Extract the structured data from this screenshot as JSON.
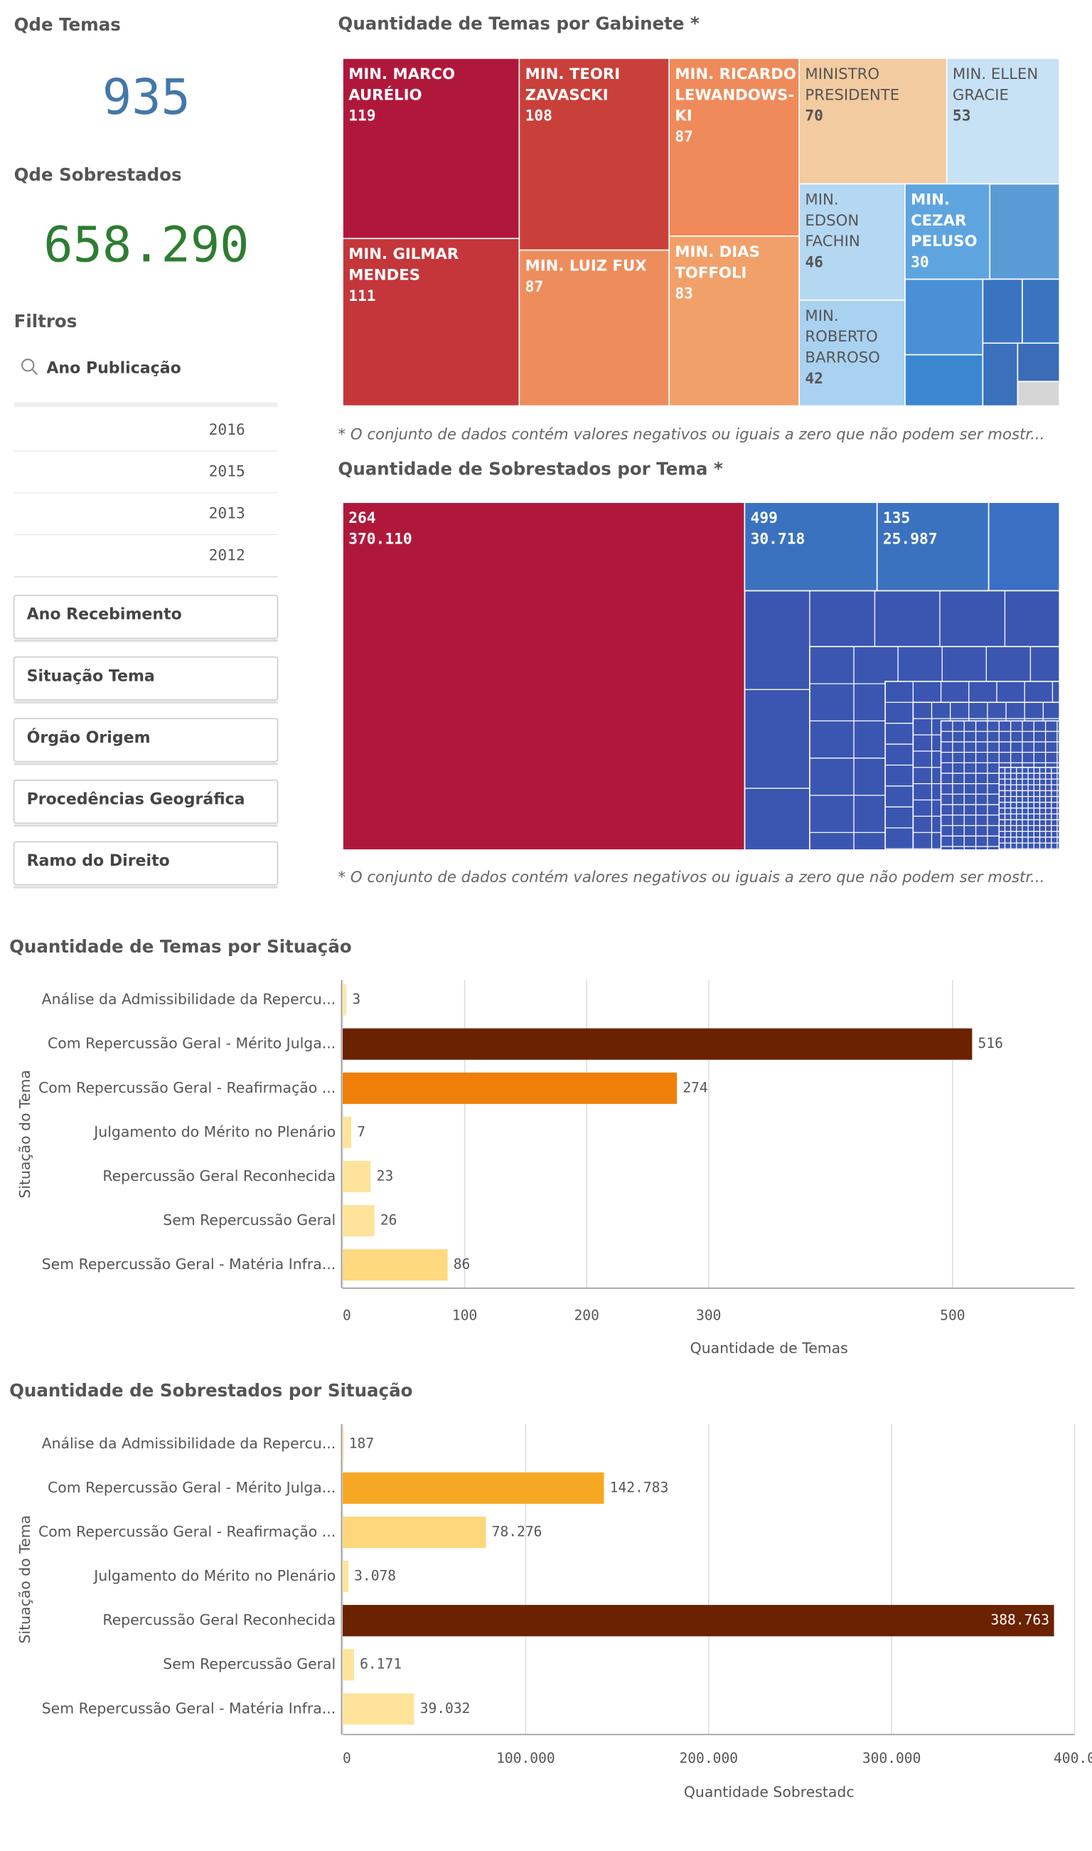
{
  "kpis": [
    {
      "title": "Qde Temas",
      "value": 935,
      "color": "#4477aa"
    },
    {
      "title": "Qde Sobrestados",
      "value": 658290,
      "value_label": "658.290",
      "color": "#2e7d32"
    }
  ],
  "filters": {
    "title": "Filtros",
    "search": "Ano Publicação",
    "years": [
      "2016",
      "2015",
      "2013",
      "2012"
    ],
    "fields": [
      "Ano Recebimento",
      "Situação Tema",
      "Órgão Origem",
      "Procedências Geográfica",
      "Ramo do Direito"
    ]
  },
  "chart_data": [
    {
      "type": "treemap",
      "title": "Quantidade de Temas por Gabinete *",
      "footnote": "* O conjunto de dados contém valores negativos ou iguais a zero que não podem ser mostr...",
      "categories": [
        "MIN. MARCO\nAURÉLIO",
        "MIN. GILMAR\nMENDES",
        "MIN. TEORI\nZAVASCKI",
        "MIN. RICARDO\nLEWANDOWS-\nKI",
        "MIN. LUIZ FUX",
        "MIN. DIAS\nTOFFOLI",
        "MINISTRO\nPRESIDENTE",
        "MIN. ELLEN\nGRACIE",
        "MIN.\nEDSON\nFACHIN",
        "MIN.\nROBERTO\nBARROSO",
        "MIN.\nCEZAR\nPELUSO"
      ],
      "values": [
        119,
        111,
        108,
        87,
        87,
        83,
        70,
        53,
        46,
        42,
        30
      ],
      "colors": [
        "#b0183b",
        "#c4363a",
        "#c9403a",
        "#ef8a5a",
        "#ee8d5c",
        "#f2a06a",
        "#f3cba0",
        "#c8e2f5",
        "#b5d8f2",
        "#a9d1f0",
        "#5ea5e0"
      ]
    },
    {
      "type": "treemap",
      "title": "Quantidade de Sobrestados por Tema *",
      "footnote": "* O conjunto de dados contém valores negativos ou iguais a zero que não podem ser mostr...",
      "categories": [
        "264",
        "499",
        "135"
      ],
      "values": [
        370110,
        30718,
        25987
      ],
      "value_labels": [
        "370.110",
        "30.718",
        "25.987"
      ],
      "colors": [
        "#b0183b",
        "#3a72c0",
        "#3a72c0"
      ]
    },
    {
      "type": "bar",
      "orientation": "horizontal",
      "title": "Quantidade de Temas por Situação",
      "categories": [
        "Análise da Admissibilidade da Repercu...",
        "Com Repercussão Geral - Mérito Julga...",
        "Com Repercussão Geral - Reafirmação ...",
        "Julgamento do Mérito no Plenário",
        "Repercussão Geral Reconhecida",
        "Sem Repercussão Geral",
        "Sem Repercussão Geral - Matéria Infra..."
      ],
      "values": [
        3,
        516,
        274,
        7,
        23,
        26,
        86
      ],
      "colors": [
        "#fde9a8",
        "#6b2200",
        "#f07f09",
        "#fde49a",
        "#fde49a",
        "#fde49a",
        "#fed97f"
      ],
      "xlim": [
        0,
        600
      ],
      "xticks": [
        0,
        100,
        200,
        300,
        500
      ],
      "x_label": "Quantidade de Temas",
      "y_label": "Situação do Tema",
      "grid": true
    },
    {
      "type": "bar",
      "orientation": "horizontal",
      "title": "Quantidade de Sobrestados por Situação",
      "categories": [
        "Análise da Admissibilidade da Repercu...",
        "Com Repercussão Geral - Mérito Julga...",
        "Com Repercussão Geral - Reafirmação ...",
        "Julgamento do Mérito no Plenário",
        "Repercussão Geral Reconhecida",
        "Sem Repercussão Geral",
        "Sem Repercussão Geral - Matéria Infra..."
      ],
      "values": [
        187,
        142783,
        78276,
        3078,
        388763,
        6171,
        39032
      ],
      "value_labels": [
        "187",
        "142.783",
        "78.276",
        "3.078",
        "388.763",
        "6.171",
        "39.032"
      ],
      "colors": [
        "#fde9a8",
        "#f7a823",
        "#fdd77a",
        "#fde49a",
        "#6b2200",
        "#fde49a",
        "#fde49a"
      ],
      "xlim": [
        0,
        400000
      ],
      "xticks": [
        {
          "value": 0,
          "label": "0"
        },
        {
          "value": 100000,
          "label": "100.000"
        },
        {
          "value": 200000,
          "label": "200.000"
        },
        {
          "value": 300000,
          "label": "300.000"
        },
        {
          "value": 400000,
          "label": "400.0"
        }
      ],
      "x_label": "Quantidade Sobrestadc",
      "y_label": "Situação do Tema",
      "grid": true
    }
  ]
}
